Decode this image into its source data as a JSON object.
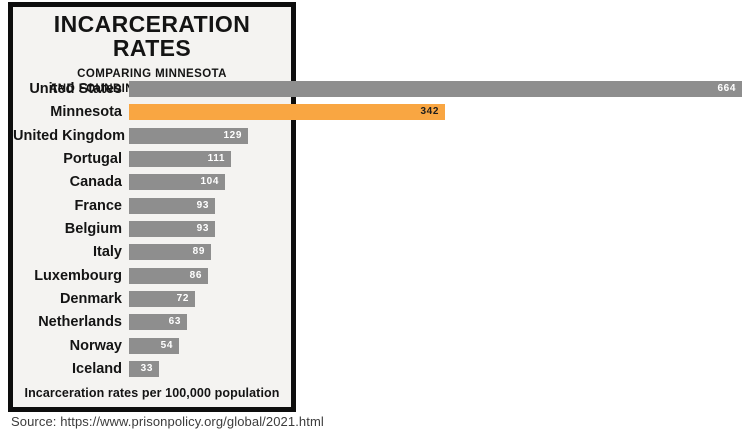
{
  "header": {
    "title": "INCARCERATION RATES",
    "subtitle_line1": "COMPARING MINNESOTA",
    "subtitle_line2": "AND FOUNDING NATO COUNTRIES"
  },
  "footnote": "Incarceration rates per 100,000 population",
  "source": "Source: https://www.prisonpolicy.org/global/2021.html",
  "colors": {
    "bar_default": "#8e8e8e",
    "bar_highlight": "#f9a642",
    "value_label": "#ffffff",
    "value_label_highlight": "#1d1d1d",
    "panel_bg": "#f4f3f1",
    "border": "#0d0d0d",
    "text": "#141414",
    "source_text": "#3c3c3c"
  },
  "chart_data": {
    "type": "bar",
    "orientation": "horizontal",
    "title": "INCARCERATION RATES",
    "subtitle": "COMPARING MINNESOTA AND FOUNDING NATO COUNTRIES",
    "xlabel": "Incarceration rates per 100,000 population",
    "categories": [
      "United States",
      "Minnesota",
      "United Kingdom",
      "Portugal",
      "Canada",
      "France",
      "Belgium",
      "Italy",
      "Luxembourg",
      "Denmark",
      "Netherlands",
      "Norway",
      "Iceland"
    ],
    "values": [
      664,
      342,
      129,
      111,
      104,
      93,
      93,
      89,
      86,
      72,
      63,
      54,
      33
    ],
    "highlight_category": "Minnesota",
    "value_labels_inside_bars": true,
    "xlim": [
      0,
      664
    ],
    "grid": false,
    "legend": false
  }
}
